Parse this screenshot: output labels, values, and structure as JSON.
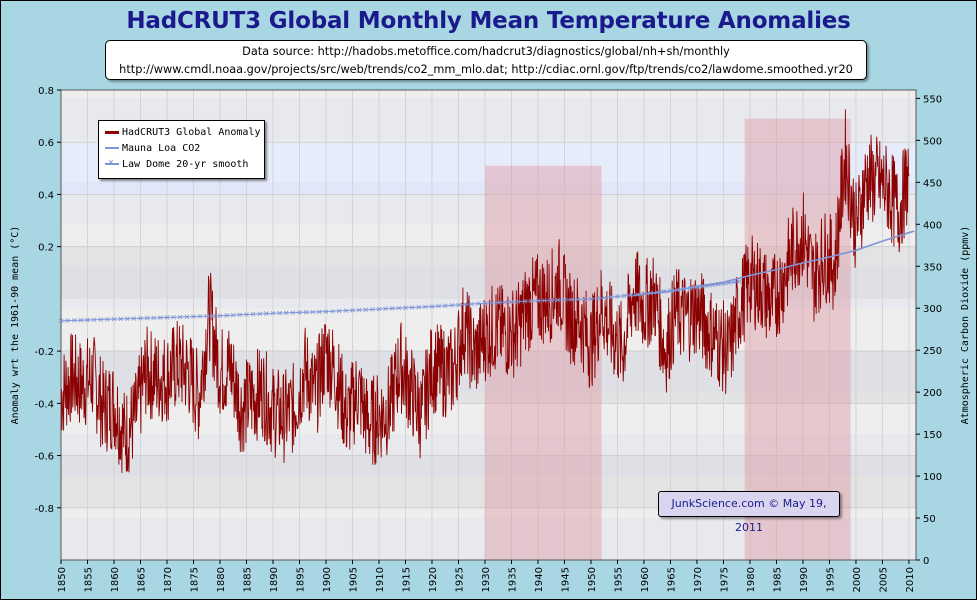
{
  "title": "HadCRUT3 Global Monthly Mean Temperature Anomalies",
  "source": {
    "line1": "Data source: http://hadobs.metoffice.com/hadcrut3/diagnostics/global/nh+sh/monthly",
    "line2": "http://www.cmdl.noaa.gov/projects/src/web/trends/co2_mm_mlo.dat; http://cdiac.ornl.gov/ftp/trends/co2/lawdome.smoothed.yr20"
  },
  "credit": "JunkScience.com © May 19, 2011",
  "colors": {
    "anomaly": "#8b0000",
    "maunaloa": "#7f95d6",
    "lawdome": "#7f95d6",
    "plot_bg_light": "#eeeeee",
    "plot_bg_dark": "#e3e3e3",
    "band_blue": "#e7ecfb",
    "shade_red": "#dd9aa4"
  },
  "chart_data": {
    "type": "line",
    "title": "HadCRUT3 Global Monthly Mean Temperature Anomalies",
    "xlabel": "",
    "ylabel": "Anomaly wrt the 1961-90 mean (°C)",
    "ylabel_right": "Atmospheric Carbon Dioxide (ppmv)",
    "xlim": [
      1850,
      2011.33
    ],
    "ylim": [
      -1.0,
      0.8
    ],
    "ylim_right": [
      0,
      560
    ],
    "x_ticks": [
      1850,
      1855,
      1860,
      1865,
      1870,
      1875,
      1880,
      1885,
      1890,
      1895,
      1900,
      1905,
      1910,
      1915,
      1920,
      1925,
      1930,
      1935,
      1940,
      1945,
      1950,
      1955,
      1960,
      1965,
      1970,
      1975,
      1980,
      1985,
      1990,
      1995,
      2000,
      2005,
      2010
    ],
    "y_ticks": [
      {
        "value": -0.8,
        "label": "-0.8"
      },
      {
        "value": -0.6,
        "label": "-0.6"
      },
      {
        "value": -0.4,
        "label": "-0.4"
      },
      {
        "value": -0.2,
        "label": "-0.2"
      },
      {
        "value": 0.2,
        "label": "0.2"
      },
      {
        "value": 0.4,
        "label": "0.4"
      },
      {
        "value": 0.6,
        "label": "0.6"
      },
      {
        "value": 0.8,
        "label": "0.8"
      }
    ],
    "y_right_ticks": [
      0,
      50,
      100,
      150,
      200,
      250,
      300,
      350,
      400,
      450,
      500,
      550
    ],
    "grid": true,
    "legend_position": "top-left",
    "shaded_periods": [
      {
        "start": 1930,
        "end": 1952,
        "top": 0.51
      },
      {
        "start": 1979,
        "end": 1999,
        "top": 0.69
      }
    ],
    "series": [
      {
        "name": "HadCRUT3 Global Anomaly",
        "axis": "left",
        "style": "line",
        "x": [
          1850,
          1852,
          1854,
          1856,
          1858,
          1860,
          1862,
          1864,
          1866,
          1868,
          1870,
          1872,
          1874,
          1876,
          1878,
          1880,
          1882,
          1884,
          1886,
          1888,
          1890,
          1892,
          1894,
          1896,
          1898,
          1900,
          1902,
          1904,
          1906,
          1908,
          1910,
          1912,
          1914,
          1916,
          1918,
          1920,
          1922,
          1924,
          1926,
          1928,
          1930,
          1932,
          1934,
          1936,
          1938,
          1940,
          1942,
          1944,
          1946,
          1948,
          1950,
          1952,
          1954,
          1956,
          1958,
          1960,
          1962,
          1964,
          1966,
          1968,
          1970,
          1972,
          1974,
          1976,
          1978,
          1980,
          1982,
          1984,
          1986,
          1988,
          1990,
          1992,
          1994,
          1996,
          1998,
          2000,
          2002,
          2004,
          2006,
          2008,
          2010
        ],
        "y": [
          -0.37,
          -0.3,
          -0.33,
          -0.3,
          -0.42,
          -0.4,
          -0.52,
          -0.46,
          -0.28,
          -0.3,
          -0.3,
          -0.25,
          -0.28,
          -0.38,
          -0.05,
          -0.28,
          -0.26,
          -0.42,
          -0.38,
          -0.35,
          -0.43,
          -0.45,
          -0.42,
          -0.27,
          -0.37,
          -0.2,
          -0.3,
          -0.46,
          -0.35,
          -0.48,
          -0.45,
          -0.42,
          -0.25,
          -0.35,
          -0.45,
          -0.26,
          -0.28,
          -0.28,
          -0.1,
          -0.22,
          -0.14,
          -0.11,
          -0.13,
          -0.12,
          -0.03,
          0.0,
          0.0,
          0.06,
          -0.07,
          -0.08,
          -0.18,
          -0.03,
          -0.13,
          -0.19,
          0.03,
          -0.03,
          0.01,
          -0.2,
          -0.05,
          -0.07,
          -0.04,
          -0.11,
          -0.16,
          -0.21,
          -0.03,
          0.07,
          0.05,
          -0.02,
          0.06,
          0.18,
          0.25,
          0.08,
          0.17,
          0.13,
          0.55,
          0.27,
          0.46,
          0.45,
          0.42,
          0.33,
          0.47
        ]
      },
      {
        "name": "Mauna Loa CO2",
        "axis": "right",
        "style": "line",
        "x": [
          1958,
          1960,
          1965,
          1970,
          1975,
          1980,
          1985,
          1990,
          1995,
          2000,
          2005,
          2010,
          2011
        ],
        "y": [
          315,
          317,
          320,
          326,
          331,
          339,
          346,
          354,
          361,
          369,
          380,
          390,
          392
        ]
      },
      {
        "name": "Law Dome 20-yr smooth",
        "axis": "right",
        "style": "line-x-markers",
        "x": [
          1850,
          1860,
          1870,
          1880,
          1890,
          1900,
          1910,
          1920,
          1930,
          1940,
          1950,
          1960,
          1970,
          1978
        ],
        "y": [
          285,
          287,
          289,
          291,
          294,
          296,
          299,
          302,
          306,
          309,
          311,
          317,
          325,
          332
        ]
      }
    ]
  },
  "legend": {
    "entries": [
      {
        "label": "HadCRUT3 Global Anomaly"
      },
      {
        "label": "Mauna Loa CO2"
      },
      {
        "label": "Law Dome 20-yr smooth"
      }
    ]
  }
}
